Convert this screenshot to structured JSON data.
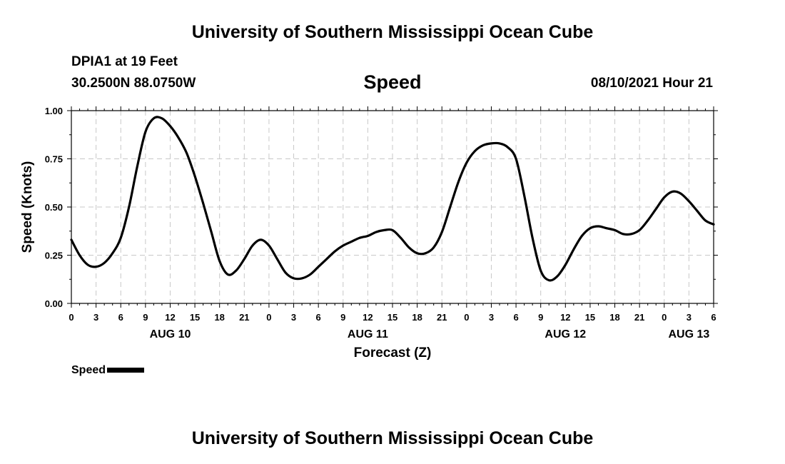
{
  "header": {
    "title_top": "University of Southern Mississippi Ocean Cube",
    "title_bottom": "University of Southern Mississippi Ocean Cube",
    "station": "DPIA1 at 19 Feet",
    "coords": "30.2500N  88.0750W",
    "variable": "Speed",
    "timestamp": "08/10/2021 Hour 21"
  },
  "chart_data": {
    "type": "line",
    "title": "Speed",
    "xlabel": "Forecast (Z)",
    "ylabel": "Speed (Knots)",
    "ylim": [
      0,
      1
    ],
    "xlim": [
      0,
      78
    ],
    "x_unit": "hours from AUG 10 00Z",
    "grid": true,
    "yticks": [
      "0.00",
      "0.25",
      "0.50",
      "0.75",
      "1.00"
    ],
    "xticks": [
      "0",
      "3",
      "6",
      "9",
      "12",
      "15",
      "18",
      "21",
      "0",
      "3",
      "6",
      "9",
      "12",
      "15",
      "18",
      "21",
      "0",
      "3",
      "6",
      "9",
      "12",
      "15",
      "18",
      "21",
      "0",
      "3",
      "6"
    ],
    "date_labels": [
      {
        "label": "AUG 10",
        "hour": 12
      },
      {
        "label": "AUG 11",
        "hour": 36
      },
      {
        "label": "AUG 12",
        "hour": 60
      },
      {
        "label": "AUG 13",
        "hour": 75
      }
    ],
    "series": [
      {
        "name": "Speed",
        "color": "#000000",
        "x": [
          0,
          1,
          2,
          3,
          4,
          5,
          6,
          7,
          8,
          9,
          10,
          11,
          12,
          13,
          14,
          15,
          16,
          17,
          18,
          19,
          20,
          21,
          22,
          23,
          24,
          25,
          26,
          27,
          28,
          29,
          30,
          31,
          32,
          33,
          34,
          35,
          36,
          37,
          38,
          39,
          40,
          41,
          42,
          43,
          44,
          45,
          46,
          47,
          48,
          49,
          50,
          51,
          52,
          53,
          54,
          55,
          56,
          57,
          58,
          59,
          60,
          61,
          62,
          63,
          64,
          65,
          66,
          67,
          68,
          69,
          70,
          71,
          72,
          73,
          74,
          75,
          76,
          77,
          78
        ],
        "values": [
          0.33,
          0.25,
          0.2,
          0.19,
          0.21,
          0.26,
          0.34,
          0.5,
          0.71,
          0.89,
          0.96,
          0.96,
          0.92,
          0.86,
          0.78,
          0.66,
          0.52,
          0.37,
          0.22,
          0.15,
          0.17,
          0.23,
          0.3,
          0.33,
          0.3,
          0.23,
          0.16,
          0.13,
          0.13,
          0.15,
          0.19,
          0.23,
          0.27,
          0.3,
          0.32,
          0.34,
          0.35,
          0.37,
          0.38,
          0.38,
          0.34,
          0.29,
          0.26,
          0.26,
          0.29,
          0.37,
          0.5,
          0.63,
          0.73,
          0.79,
          0.82,
          0.83,
          0.83,
          0.81,
          0.75,
          0.56,
          0.34,
          0.17,
          0.12,
          0.14,
          0.2,
          0.28,
          0.35,
          0.39,
          0.4,
          0.39,
          0.38,
          0.36,
          0.36,
          0.38,
          0.43,
          0.49,
          0.55,
          0.58,
          0.57,
          0.53,
          0.48,
          0.43,
          0.41
        ]
      }
    ],
    "legend": {
      "label": "Speed",
      "placement": "bottom-left"
    }
  }
}
